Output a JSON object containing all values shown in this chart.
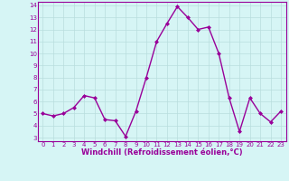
{
  "x": [
    0,
    1,
    2,
    3,
    4,
    5,
    6,
    7,
    8,
    9,
    10,
    11,
    12,
    13,
    14,
    15,
    16,
    17,
    18,
    19,
    20,
    21,
    22,
    23
  ],
  "y": [
    5.0,
    4.8,
    5.0,
    5.5,
    6.5,
    6.3,
    4.5,
    4.4,
    3.1,
    5.2,
    8.0,
    11.0,
    12.5,
    13.9,
    13.0,
    12.0,
    12.2,
    10.0,
    6.3,
    3.5,
    6.3,
    5.0,
    4.3,
    5.2
  ],
  "line_color": "#990099",
  "marker": "D",
  "marker_size": 2.0,
  "bg_color": "#d6f5f5",
  "grid_color": "#b8dede",
  "xlabel": "Windchill (Refroidissement éolien,°C)",
  "xlabel_color": "#990099",
  "xlim": [
    -0.5,
    23.5
  ],
  "ylim": [
    2.7,
    14.3
  ],
  "yticks": [
    3,
    4,
    5,
    6,
    7,
    8,
    9,
    10,
    11,
    12,
    13,
    14
  ],
  "xticks": [
    0,
    1,
    2,
    3,
    4,
    5,
    6,
    7,
    8,
    9,
    10,
    11,
    12,
    13,
    14,
    15,
    16,
    17,
    18,
    19,
    20,
    21,
    22,
    23
  ],
  "tick_color": "#990099",
  "spine_color": "#990099",
  "line_width": 1.0,
  "tick_labelsize": 5.0,
  "xlabel_fontsize": 6.0
}
